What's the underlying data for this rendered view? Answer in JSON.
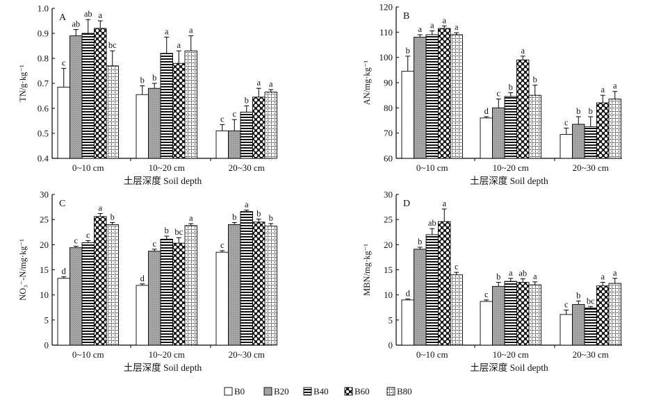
{
  "chart_data": [
    {
      "type": "bar",
      "panel_label": "A",
      "ylabel": "TN/g·kg⁻¹",
      "xlabel": "土层深度 Soil depth",
      "categories": [
        "0~10 cm",
        "10~20 cm",
        "20~30 cm"
      ],
      "ylim": [
        0.4,
        1.0
      ],
      "yticks": [
        "0.4",
        "0.5",
        "0.6",
        "0.7",
        "0.8",
        "0.9",
        "1.0"
      ],
      "series": [
        {
          "name": "B0",
          "values": [
            0.685,
            0.655,
            0.51
          ],
          "errors": [
            0.075,
            0.035,
            0.025
          ],
          "letters": [
            "c",
            "b",
            "c"
          ]
        },
        {
          "name": "B20",
          "values": [
            0.89,
            0.68,
            0.51
          ],
          "errors": [
            0.025,
            0.02,
            0.045
          ],
          "letters": [
            "ab",
            "b",
            "c"
          ]
        },
        {
          "name": "B40",
          "values": [
            0.9,
            0.82,
            0.585
          ],
          "errors": [
            0.055,
            0.065,
            0.025
          ],
          "letters": [
            "ab",
            "a",
            "b"
          ]
        },
        {
          "name": "B60",
          "values": [
            0.92,
            0.78,
            0.645
          ],
          "errors": [
            0.03,
            0.05,
            0.035
          ],
          "letters": [
            "a",
            "a",
            "a"
          ]
        },
        {
          "name": "B80",
          "values": [
            0.77,
            0.83,
            0.665
          ],
          "errors": [
            0.06,
            0.06,
            0.01
          ],
          "letters": [
            "bc",
            "a",
            "a"
          ]
        }
      ]
    },
    {
      "type": "bar",
      "panel_label": "B",
      "ylabel": "AN/mg·kg⁻¹",
      "xlabel": "土层深度 Soil depth",
      "categories": [
        "0~10 cm",
        "10~20 cm",
        "20~30 cm"
      ],
      "ylim": [
        60,
        120
      ],
      "yticks": [
        "60",
        "70",
        "80",
        "90",
        "100",
        "110",
        "120"
      ],
      "series": [
        {
          "name": "B0",
          "values": [
            94.5,
            76,
            69.5
          ],
          "errors": [
            6,
            0.5,
            2.5
          ],
          "letters": [
            "b",
            "d",
            "c"
          ]
        },
        {
          "name": "B20",
          "values": [
            108,
            80,
            73.5
          ],
          "errors": [
            1,
            3.5,
            3
          ],
          "letters": [
            "a",
            "c",
            "b"
          ]
        },
        {
          "name": "B40",
          "values": [
            109,
            84.5,
            72.5
          ],
          "errors": [
            1.5,
            1.5,
            4
          ],
          "letters": [
            "a",
            "b",
            "b"
          ]
        },
        {
          "name": "B60",
          "values": [
            111.5,
            99,
            82
          ],
          "errors": [
            1,
            1.5,
            3
          ],
          "letters": [
            "a",
            "a",
            "a"
          ]
        },
        {
          "name": "B80",
          "values": [
            109,
            85,
            83.5
          ],
          "errors": [
            0.8,
            4,
            3
          ],
          "letters": [
            "a",
            "b",
            "a"
          ]
        }
      ]
    },
    {
      "type": "bar",
      "panel_label": "C",
      "ylabel": "NO₃⁻-N/mg·kg⁻¹",
      "xlabel": "土层深度 Soil depth",
      "categories": [
        "0~10 cm",
        "10~20 cm",
        "20~30 cm"
      ],
      "ylim": [
        0,
        30
      ],
      "yticks": [
        "0",
        "5",
        "10",
        "15",
        "20",
        "25",
        "30"
      ],
      "series": [
        {
          "name": "B0",
          "values": [
            13.3,
            11.9,
            18.5
          ],
          "errors": [
            0.3,
            0.3,
            0.3
          ],
          "letters": [
            "d",
            "d",
            "c"
          ]
        },
        {
          "name": "B20",
          "values": [
            19.4,
            18.7,
            24.0
          ],
          "errors": [
            0.3,
            0.4,
            0.4
          ],
          "letters": [
            "c",
            "c",
            "b"
          ]
        },
        {
          "name": "B40",
          "values": [
            20.4,
            21.1,
            26.6
          ],
          "errors": [
            0.4,
            0.6,
            0.3
          ],
          "letters": [
            "c",
            "b",
            "a"
          ]
        },
        {
          "name": "B60",
          "values": [
            25.6,
            20.3,
            24.5
          ],
          "errors": [
            0.6,
            1.1,
            0.6
          ],
          "letters": [
            "a",
            "bc",
            "b"
          ]
        },
        {
          "name": "B80",
          "values": [
            24.0,
            23.8,
            23.7
          ],
          "errors": [
            0.4,
            0.4,
            0.5
          ],
          "letters": [
            "b",
            "a",
            "b"
          ]
        }
      ]
    },
    {
      "type": "bar",
      "panel_label": "D",
      "ylabel": "MBN/mg·kg⁻¹",
      "xlabel": "土层深度 Soil depth",
      "categories": [
        "0~10 cm",
        "10~20 cm",
        "20~30 cm"
      ],
      "ylim": [
        0,
        30
      ],
      "yticks": [
        "0",
        "5",
        "10",
        "15",
        "20",
        "25",
        "30"
      ],
      "series": [
        {
          "name": "B0",
          "values": [
            9.0,
            8.7,
            6.1
          ],
          "errors": [
            0.2,
            0.3,
            0.9
          ],
          "letters": [
            "d",
            "c",
            "c"
          ]
        },
        {
          "name": "B20",
          "values": [
            19.1,
            11.7,
            8.1
          ],
          "errors": [
            0.4,
            0.8,
            0.7
          ],
          "letters": [
            "b",
            "b",
            "b"
          ]
        },
        {
          "name": "B40",
          "values": [
            22.0,
            12.7,
            7.4
          ],
          "errors": [
            1.2,
            0.6,
            0.3
          ],
          "letters": [
            "ab",
            "a",
            "bc"
          ]
        },
        {
          "name": "B60",
          "values": [
            24.6,
            12.5,
            11.8
          ],
          "errors": [
            2.5,
            0.7,
            0.7
          ],
          "letters": [
            "a",
            "ab",
            "a"
          ]
        },
        {
          "name": "B80",
          "values": [
            14.0,
            12.0,
            12.3
          ],
          "errors": [
            0.5,
            0.6,
            1.0
          ],
          "letters": [
            "c",
            "a",
            "a"
          ]
        }
      ]
    }
  ],
  "legend": [
    {
      "name": "B0"
    },
    {
      "name": "B20"
    },
    {
      "name": "B40"
    },
    {
      "name": "B60"
    },
    {
      "name": "B80"
    }
  ]
}
